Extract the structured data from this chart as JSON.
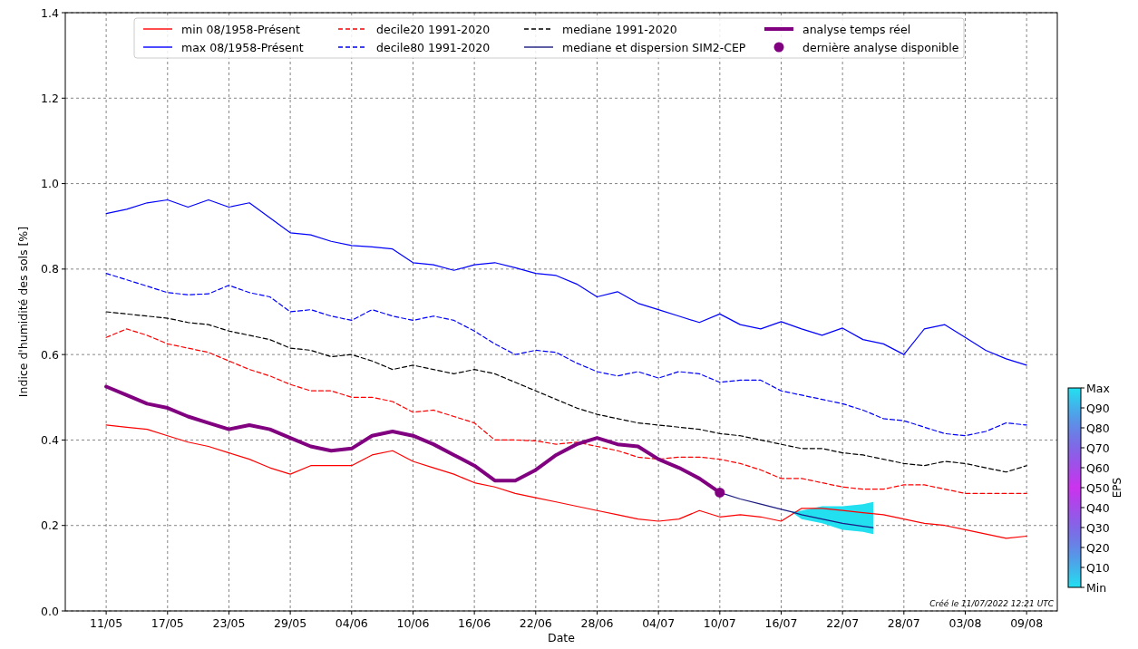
{
  "chart_data": {
    "type": "line",
    "xlabel": "Date",
    "ylabel": "Indice d'humidité des sols  [%]",
    "clabel": "EPS",
    "x": [
      "--05-11",
      "--05-13",
      "--05-15",
      "--05-17",
      "--05-19",
      "--05-21",
      "--05-23",
      "--05-25",
      "--05-27",
      "--05-29",
      "--05-31",
      "--06-02",
      "--06-04",
      "--06-06",
      "--06-08",
      "--06-10",
      "--06-12",
      "--06-14",
      "--06-16",
      "--06-18",
      "--06-20",
      "--06-22",
      "--06-24",
      "--06-26",
      "--06-28",
      "--06-30",
      "--07-02",
      "--07-04",
      "--07-06",
      "--07-08",
      "--07-10",
      "--07-12",
      "--07-14",
      "--07-16",
      "--07-18",
      "--07-20",
      "--07-22",
      "--07-24",
      "--07-26",
      "--07-28",
      "--07-30",
      "--08-01",
      "--08-03",
      "--08-05",
      "--08-07",
      "--08-09"
    ],
    "series": [
      {
        "name": "min 08/1958-Présent",
        "color": "#ff0000",
        "line_style": "solid",
        "values": [
          0.435,
          0.43,
          0.425,
          0.41,
          0.395,
          0.385,
          0.37,
          0.355,
          0.335,
          0.32,
          0.34,
          0.34,
          0.34,
          0.365,
          0.375,
          0.35,
          0.335,
          0.32,
          0.3,
          0.29,
          0.275,
          0.265,
          0.255,
          0.245,
          0.235,
          0.225,
          0.215,
          0.21,
          0.215,
          0.235,
          0.22,
          0.225,
          0.22,
          0.21,
          0.24,
          0.24,
          0.235,
          0.23,
          0.225,
          0.215,
          0.205,
          0.2,
          0.19,
          0.18,
          0.17,
          0.175
        ]
      },
      {
        "name": "max 08/1958-Présent",
        "color": "#0000ff",
        "line_style": "solid",
        "values": [
          0.93,
          0.94,
          0.955,
          0.962,
          0.945,
          0.962,
          0.945,
          0.955,
          0.92,
          0.885,
          0.88,
          0.865,
          0.855,
          0.852,
          0.847,
          0.815,
          0.81,
          0.797,
          0.81,
          0.815,
          0.803,
          0.79,
          0.785,
          0.765,
          0.735,
          0.747,
          0.72,
          0.705,
          0.69,
          0.675,
          0.695,
          0.67,
          0.66,
          0.677,
          0.66,
          0.645,
          0.662,
          0.635,
          0.625,
          0.6,
          0.66,
          0.67,
          0.64,
          0.61,
          0.59,
          0.575
        ]
      },
      {
        "name": "decile20 1991-2020",
        "color": "#ff0000",
        "line_style": "dashed",
        "values": [
          0.64,
          0.66,
          0.645,
          0.625,
          0.615,
          0.605,
          0.585,
          0.565,
          0.55,
          0.53,
          0.515,
          0.515,
          0.5,
          0.5,
          0.49,
          0.465,
          0.47,
          0.455,
          0.44,
          0.4,
          0.4,
          0.398,
          0.39,
          0.395,
          0.385,
          0.375,
          0.36,
          0.355,
          0.36,
          0.36,
          0.355,
          0.345,
          0.33,
          0.31,
          0.31,
          0.3,
          0.29,
          0.285,
          0.285,
          0.295,
          0.295,
          0.285,
          0.275,
          0.275,
          0.275,
          0.275
        ]
      },
      {
        "name": "decile80 1991-2020",
        "color": "#0000ff",
        "line_style": "dashed",
        "values": [
          0.79,
          0.775,
          0.76,
          0.745,
          0.74,
          0.742,
          0.762,
          0.745,
          0.735,
          0.7,
          0.705,
          0.69,
          0.68,
          0.705,
          0.69,
          0.68,
          0.69,
          0.68,
          0.655,
          0.625,
          0.6,
          0.61,
          0.605,
          0.58,
          0.56,
          0.55,
          0.56,
          0.545,
          0.56,
          0.555,
          0.535,
          0.54,
          0.54,
          0.515,
          0.505,
          0.495,
          0.485,
          0.47,
          0.45,
          0.445,
          0.43,
          0.415,
          0.41,
          0.42,
          0.44,
          0.435
        ]
      },
      {
        "name": "mediane 1991-2020",
        "color": "#000000",
        "line_style": "dashed",
        "values": [
          0.7,
          0.695,
          0.69,
          0.685,
          0.675,
          0.67,
          0.655,
          0.645,
          0.635,
          0.615,
          0.61,
          0.595,
          0.6,
          0.585,
          0.565,
          0.575,
          0.565,
          0.555,
          0.565,
          0.555,
          0.535,
          0.515,
          0.495,
          0.475,
          0.46,
          0.45,
          0.44,
          0.435,
          0.43,
          0.425,
          0.415,
          0.41,
          0.4,
          0.39,
          0.38,
          0.38,
          0.37,
          0.365,
          0.355,
          0.345,
          0.34,
          0.35,
          0.345,
          0.335,
          0.325,
          0.34
        ]
      },
      {
        "name": "mediane et dispersion SIM2-CEP",
        "color": "#1a1a80",
        "line_style": "solid",
        "x": [
          "--07-10",
          "--07-12",
          "--07-14",
          "--07-16",
          "--07-17",
          "--07-18",
          "--07-20",
          "--07-22",
          "--07-24",
          "--07-25"
        ],
        "values": [
          0.277,
          0.262,
          0.25,
          0.238,
          0.232,
          0.225,
          0.215,
          0.205,
          0.198,
          0.195
        ],
        "lower": [
          null,
          null,
          null,
          null,
          0.232,
          0.215,
          0.205,
          0.19,
          0.185,
          0.18
        ],
        "upper": [
          null,
          null,
          null,
          null,
          0.232,
          0.235,
          0.245,
          0.245,
          0.25,
          0.255
        ]
      },
      {
        "name": "analyse temps réel",
        "color": "#800080",
        "line_style": "solid",
        "x": [
          "--05-11",
          "--05-13",
          "--05-15",
          "--05-17",
          "--05-19",
          "--05-21",
          "--05-23",
          "--05-25",
          "--05-27",
          "--05-29",
          "--05-31",
          "--06-02",
          "--06-04",
          "--06-06",
          "--06-08",
          "--06-10",
          "--06-12",
          "--06-14",
          "--06-16",
          "--06-18",
          "--06-20",
          "--06-22",
          "--06-24",
          "--06-26",
          "--06-28",
          "--06-30",
          "--07-02",
          "--07-04",
          "--07-06",
          "--07-08",
          "--07-10"
        ],
        "values": [
          0.525,
          0.505,
          0.485,
          0.475,
          0.455,
          0.44,
          0.425,
          0.435,
          0.425,
          0.405,
          0.385,
          0.375,
          0.38,
          0.41,
          0.42,
          0.41,
          0.39,
          0.365,
          0.34,
          0.305,
          0.305,
          0.33,
          0.365,
          0.39,
          0.405,
          0.39,
          0.385,
          0.355,
          0.335,
          0.31,
          0.277
        ]
      },
      {
        "name": "dernière analyse disponible",
        "type": "scatter",
        "color": "#800080",
        "marker": "circle",
        "x": [
          "--07-10"
        ],
        "values": [
          0.277
        ]
      }
    ],
    "xlim": [
      "--05-07",
      "--08-12"
    ],
    "xticks": [
      {
        "value": "--05-11",
        "label": "11/05"
      },
      {
        "value": "--05-17",
        "label": "17/05"
      },
      {
        "value": "--05-23",
        "label": "23/05"
      },
      {
        "value": "--05-29",
        "label": "29/05"
      },
      {
        "value": "--06-04",
        "label": "04/06"
      },
      {
        "value": "--06-10",
        "label": "10/06"
      },
      {
        "value": "--06-16",
        "label": "16/06"
      },
      {
        "value": "--06-22",
        "label": "22/06"
      },
      {
        "value": "--06-28",
        "label": "28/06"
      },
      {
        "value": "--07-04",
        "label": "04/07"
      },
      {
        "value": "--07-10",
        "label": "10/07"
      },
      {
        "value": "--07-16",
        "label": "16/07"
      },
      {
        "value": "--07-22",
        "label": "22/07"
      },
      {
        "value": "--07-28",
        "label": "28/07"
      },
      {
        "value": "--08-03",
        "label": "03/08"
      },
      {
        "value": "--08-09",
        "label": "09/08"
      }
    ],
    "ylim": [
      0,
      1.4
    ],
    "yticks": [
      {
        "value": 0,
        "label": "0.0"
      },
      0.2,
      0.4,
      0.6,
      0.8,
      {
        "value": 1,
        "label": "1.0"
      },
      1.2,
      1.4
    ],
    "clim": [
      0,
      100
    ],
    "cticks": [
      {
        "value": 0,
        "label": "Min"
      },
      {
        "value": 10,
        "label": "Q10"
      },
      {
        "value": 20,
        "label": "Q20"
      },
      {
        "value": 30,
        "label": "Q30"
      },
      {
        "value": 40,
        "label": "Q40"
      },
      {
        "value": 50,
        "label": "Q50"
      },
      {
        "value": 60,
        "label": "Q60"
      },
      {
        "value": 70,
        "label": "Q70"
      },
      {
        "value": 80,
        "label": "Q80"
      },
      {
        "value": 90,
        "label": "Q90"
      },
      {
        "value": 100,
        "label": "Max"
      }
    ],
    "grid": true,
    "legend": "top",
    "annotations": [
      "Créé le 11/07/2022 12:21 UTC"
    ]
  }
}
